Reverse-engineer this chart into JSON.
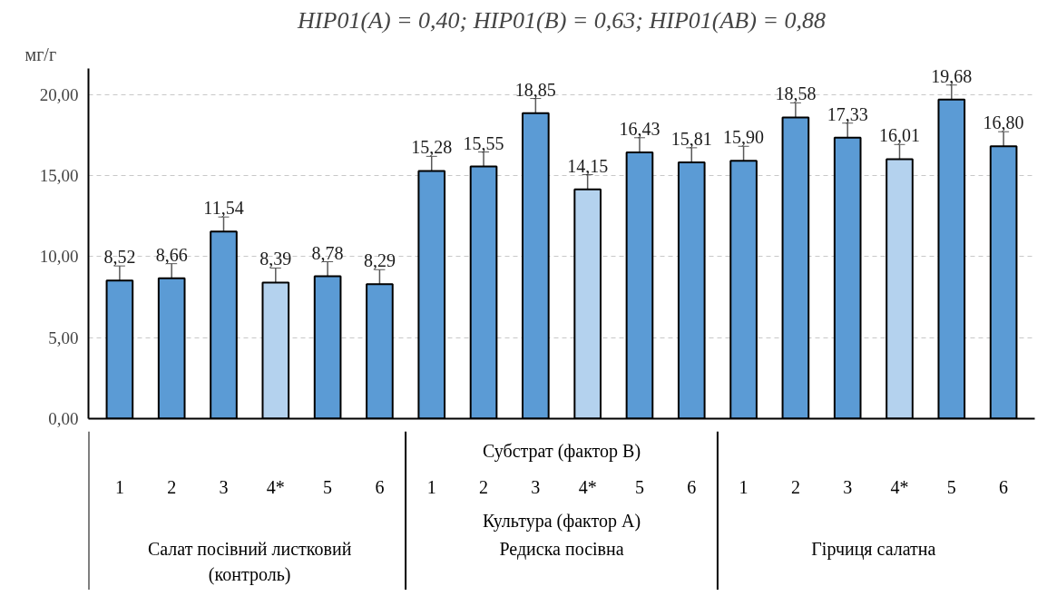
{
  "chart_data": {
    "type": "bar",
    "title": "HIP01(A) = 0,40; HIP01(B) = 0,63; HIP01(AB) = 0,88",
    "ylabel": "мг/г",
    "xlabel": "Субстрат (фактор В)",
    "annotations": [
      "Культура (фактор А)",
      "Салат посівний листковий\n(контроль)",
      "Редиска посівна",
      "Гірчиця салатна"
    ],
    "categories": [
      "1",
      "2",
      "3",
      "4*",
      "5",
      "6",
      "1",
      "2",
      "3",
      "4*",
      "5",
      "6",
      "1",
      "2",
      "3",
      "4*",
      "5",
      "6"
    ],
    "values": [
      8.52,
      8.66,
      11.54,
      8.39,
      8.78,
      8.29,
      15.28,
      15.55,
      18.85,
      14.15,
      16.43,
      15.81,
      15.9,
      18.58,
      17.33,
      16.01,
      19.68,
      16.8
    ],
    "value_labels": [
      "8,52",
      "8,66",
      "11,54",
      "8,39",
      "8,78",
      "8,29",
      "15,28",
      "15,55",
      "18,85",
      "14,15",
      "16,43",
      "15,81",
      "15,90",
      "18,58",
      "17,33",
      "16,01",
      "19,68",
      "16,80"
    ],
    "errors": [
      0.9,
      0.9,
      0.9,
      0.9,
      0.9,
      0.9,
      0.9,
      0.9,
      0.9,
      0.9,
      0.9,
      0.9,
      0.9,
      0.9,
      0.9,
      0.9,
      0.9,
      0.9
    ],
    "colors": [
      "#5b9bd5",
      "#5b9bd5",
      "#5b9bd5",
      "#b4d2ee",
      "#5b9bd5",
      "#5b9bd5",
      "#5b9bd5",
      "#5b9bd5",
      "#5b9bd5",
      "#b4d2ee",
      "#5b9bd5",
      "#5b9bd5",
      "#5b9bd5",
      "#5b9bd5",
      "#5b9bd5",
      "#b4d2ee",
      "#5b9bd5",
      "#5b9bd5"
    ],
    "ylim": [
      0,
      21.6
    ],
    "yticks": [
      {
        "value": 0,
        "label": "0,00"
      },
      {
        "value": 5,
        "label": "5,00"
      },
      {
        "value": 10,
        "label": "10,00"
      },
      {
        "value": 15,
        "label": "15,00"
      },
      {
        "value": 20,
        "label": "20,00"
      }
    ],
    "grid": "y"
  }
}
